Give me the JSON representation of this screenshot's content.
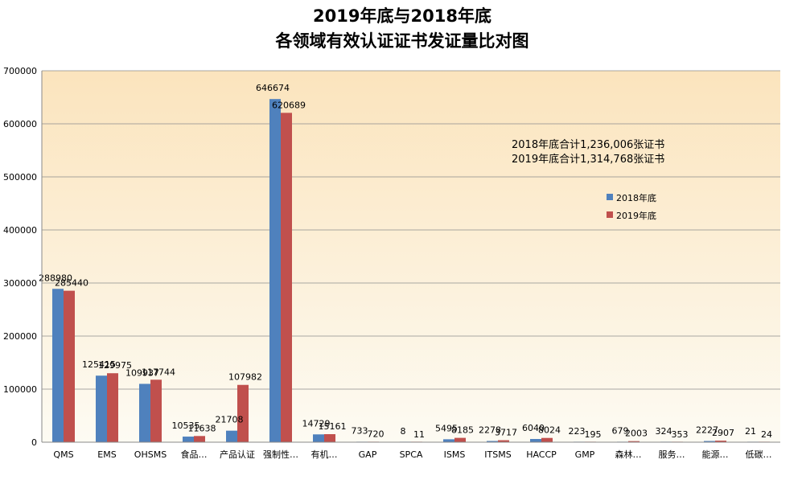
{
  "chart_data": {
    "type": "bar",
    "title_line1": "2019年底与2018年底",
    "title_line2": "各领域有效认证证书发证量比对图",
    "categories": [
      "QMS",
      "EMS",
      "OHSMS",
      "食品…",
      "产品认证",
      "强制性…",
      "有机…",
      "GAP",
      "SPCA",
      "ISMS",
      "ITSMS",
      "HACCP",
      "GMP",
      "森林…",
      "服务…",
      "能源…",
      "低碳…"
    ],
    "series": [
      {
        "name": "2018年底",
        "color": "#4f81bd",
        "values": [
          288980,
          125415,
          109937,
          10535,
          21708,
          646674,
          14729,
          733,
          8,
          5495,
          2278,
          6040,
          223,
          679,
          324,
          2227,
          21
        ]
      },
      {
        "name": "2019年底",
        "color": "#c0504d",
        "values": [
          285440,
          129975,
          117744,
          11638,
          107982,
          620689,
          15161,
          720,
          11,
          8185,
          3717,
          8024,
          195,
          2003,
          353,
          2907,
          24
        ]
      }
    ],
    "ylim": [
      0,
      700000
    ],
    "yticks": [
      "0",
      "100000",
      "200000",
      "300000",
      "400000",
      "500000",
      "600000",
      "700000"
    ],
    "grid": true,
    "legend_position": "right",
    "annotations": [
      "2018年底合计1,236,006张证书",
      "2019年底合计1,314,768张证书"
    ]
  }
}
